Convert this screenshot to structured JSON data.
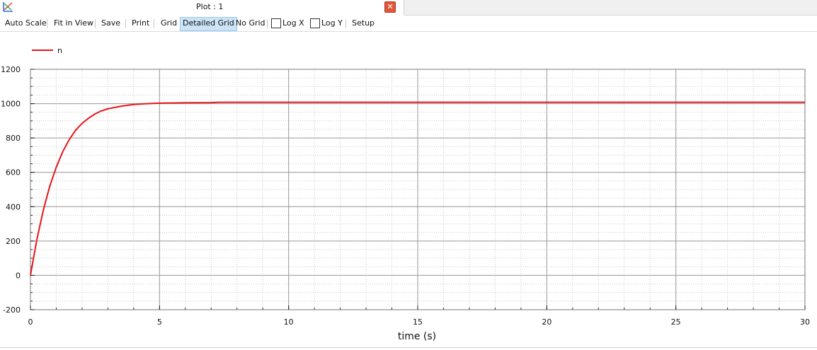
{
  "window": {
    "title": "Plot : 1",
    "close_icon": "close-icon",
    "app_icon": "plot-app-icon"
  },
  "toolbar": {
    "auto_scale": "Auto Scale",
    "fit_in_view": "Fit in View",
    "save": "Save",
    "print": "Print",
    "grid": "Grid",
    "detailed_grid": "Detailed Grid",
    "no_grid": "No Grid",
    "log_x": "Log X",
    "log_y": "Log Y",
    "setup": "Setup",
    "active_grid_mode": "Detailed Grid",
    "log_x_checked": false,
    "log_y_checked": false
  },
  "chart_data": {
    "type": "line",
    "title": "",
    "xlabel": "time (s)",
    "ylabel": "",
    "xlim": [
      0,
      30
    ],
    "ylim": [
      -200,
      1200
    ],
    "x_ticks": [
      0,
      5,
      10,
      15,
      20,
      25,
      30
    ],
    "y_ticks": [
      -200,
      0,
      200,
      400,
      600,
      800,
      1000,
      1200
    ],
    "x_tick_labels": [
      "0",
      "5",
      "10",
      "15",
      "20",
      "25",
      "30"
    ],
    "y_tick_labels": [
      "-200",
      "0",
      "200",
      "400",
      "600",
      "800",
      "1000",
      "1200"
    ],
    "grid": "detailed",
    "legend": "top-left",
    "series": [
      {
        "name": "n",
        "color": "#e8151b",
        "x": [
          0,
          0.25,
          0.5,
          0.75,
          1.0,
          1.25,
          1.5,
          1.75,
          2.0,
          2.25,
          2.5,
          2.75,
          3.0,
          3.5,
          4.0,
          4.5,
          5.0,
          6.0,
          7.0,
          7.3,
          10,
          15,
          20,
          25,
          30
        ],
        "y": [
          0,
          210,
          380,
          520,
          630,
          720,
          790,
          845,
          885,
          915,
          940,
          958,
          970,
          985,
          995,
          1000,
          1003,
          1005,
          1006,
          1008,
          1008,
          1008,
          1008,
          1008,
          1008
        ]
      }
    ]
  }
}
